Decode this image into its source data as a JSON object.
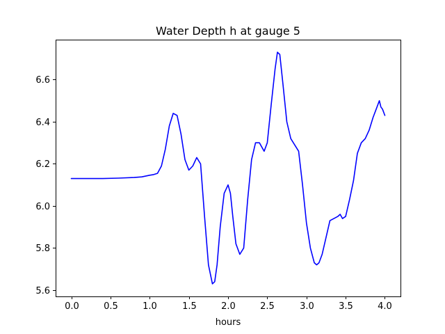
{
  "chart_data": {
    "type": "line",
    "title": "Water Depth h at gauge 5",
    "xlabel": "hours",
    "ylabel": "",
    "xlim": [
      -0.2,
      4.2
    ],
    "ylim": [
      5.57,
      6.79
    ],
    "grid": false,
    "legend": "none",
    "x_ticks": [
      0.0,
      0.5,
      1.0,
      1.5,
      2.0,
      2.5,
      3.0,
      3.5,
      4.0
    ],
    "x_tick_labels": [
      "0.0",
      "0.5",
      "1.0",
      "1.5",
      "2.0",
      "2.5",
      "3.0",
      "3.5",
      "4.0"
    ],
    "y_ticks": [
      5.6,
      5.8,
      6.0,
      6.2,
      6.4,
      6.6
    ],
    "y_tick_labels": [
      "5.6",
      "5.8",
      "6.0",
      "6.2",
      "6.4",
      "6.6"
    ],
    "series": [
      {
        "color": "#0000ff",
        "x": [
          0.0,
          0.2,
          0.4,
          0.6,
          0.8,
          0.9,
          1.0,
          1.05,
          1.1,
          1.15,
          1.2,
          1.25,
          1.3,
          1.35,
          1.4,
          1.45,
          1.5,
          1.55,
          1.6,
          1.65,
          1.7,
          1.75,
          1.8,
          1.83,
          1.86,
          1.9,
          1.95,
          2.0,
          2.03,
          2.06,
          2.1,
          2.15,
          2.2,
          2.25,
          2.3,
          2.35,
          2.4,
          2.43,
          2.46,
          2.5,
          2.55,
          2.6,
          2.63,
          2.66,
          2.7,
          2.75,
          2.8,
          2.85,
          2.9,
          2.95,
          3.0,
          3.05,
          3.1,
          3.13,
          3.16,
          3.2,
          3.25,
          3.3,
          3.35,
          3.4,
          3.43,
          3.46,
          3.5,
          3.55,
          3.6,
          3.65,
          3.7,
          3.75,
          3.8,
          3.85,
          3.9,
          3.93,
          3.95,
          3.97,
          4.0
        ],
        "y": [
          6.13,
          6.13,
          6.13,
          6.132,
          6.135,
          6.138,
          6.146,
          6.149,
          6.155,
          6.19,
          6.27,
          6.38,
          6.44,
          6.43,
          6.34,
          6.22,
          6.17,
          6.19,
          6.23,
          6.2,
          5.95,
          5.72,
          5.63,
          5.64,
          5.72,
          5.9,
          6.06,
          6.1,
          6.06,
          5.95,
          5.82,
          5.77,
          5.8,
          6.03,
          6.22,
          6.3,
          6.3,
          6.28,
          6.26,
          6.3,
          6.48,
          6.65,
          6.73,
          6.72,
          6.58,
          6.4,
          6.32,
          6.29,
          6.26,
          6.1,
          5.92,
          5.8,
          5.73,
          5.72,
          5.73,
          5.77,
          5.85,
          5.93,
          5.94,
          5.95,
          5.96,
          5.94,
          5.95,
          6.03,
          6.12,
          6.25,
          6.3,
          6.32,
          6.36,
          6.42,
          6.47,
          6.5,
          6.47,
          6.46,
          6.43
        ]
      }
    ]
  }
}
